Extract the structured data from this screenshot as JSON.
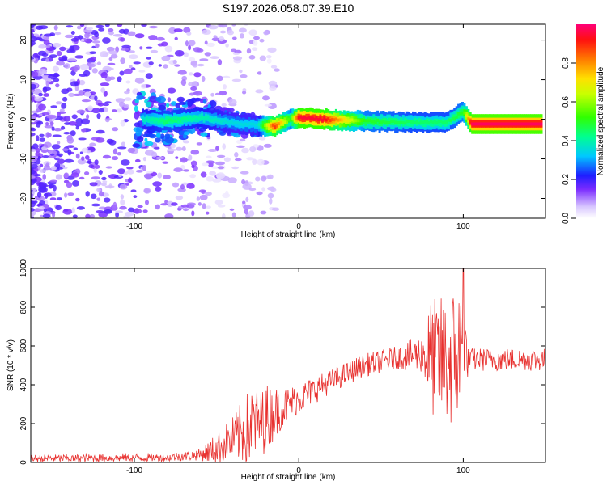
{
  "title": "S197.2026.058.07.39.E10",
  "charts": [
    {
      "type": "heatmap",
      "xlabel": "Height of straight line (km)",
      "ylabel": "Frequency (Hz)",
      "xlim": [
        -163,
        150
      ],
      "ylim": [
        -25,
        24
      ],
      "xticks": [
        -100,
        0,
        100
      ],
      "yticks": [
        -20,
        -10,
        0,
        10,
        20
      ],
      "colorbar": {
        "label": "Normalized spectral amplitude",
        "range": [
          0,
          1
        ],
        "ticks": [
          "0.0",
          "0.2",
          "0.4",
          "0.6",
          "0.8"
        ],
        "tick_values": [
          0.0,
          0.2,
          0.4,
          0.6,
          0.8
        ]
      },
      "ridge": [
        {
          "x": -100,
          "f": 0.2,
          "a": 0.35
        },
        {
          "x": -80,
          "f": -0.5,
          "a": 0.45
        },
        {
          "x": -60,
          "f": 0.5,
          "a": 0.4
        },
        {
          "x": -40,
          "f": -1.0,
          "a": 0.35
        },
        {
          "x": -25,
          "f": -1.5,
          "a": 0.35
        },
        {
          "x": -15,
          "f": -1.8,
          "a": 0.9
        },
        {
          "x": -5,
          "f": 0.0,
          "a": 0.5
        },
        {
          "x": 0,
          "f": 0.5,
          "a": 0.95
        },
        {
          "x": 15,
          "f": 0.0,
          "a": 0.95
        },
        {
          "x": 40,
          "f": -0.5,
          "a": 0.5
        },
        {
          "x": 70,
          "f": -0.8,
          "a": 0.45
        },
        {
          "x": 90,
          "f": -0.8,
          "a": 0.45
        },
        {
          "x": 100,
          "f": 2.0,
          "a": 0.5
        },
        {
          "x": 105,
          "f": -1.2,
          "a": 0.98
        },
        {
          "x": 148,
          "f": -1.2,
          "a": 0.98
        }
      ]
    },
    {
      "type": "line",
      "xlabel": "Height of straight line (km)",
      "ylabel": "SNR (10 * v/v)",
      "xlim": [
        -163,
        150
      ],
      "ylim": [
        0,
        1000
      ],
      "xticks": [
        -100,
        0,
        100
      ],
      "yticks": [
        0,
        200,
        400,
        600,
        800,
        1000
      ],
      "color": "#e8312f",
      "envelope": [
        {
          "x": -163,
          "mean": 20,
          "spread": 20
        },
        {
          "x": -80,
          "mean": 25,
          "spread": 20
        },
        {
          "x": -60,
          "mean": 40,
          "spread": 30
        },
        {
          "x": -50,
          "mean": 70,
          "spread": 80
        },
        {
          "x": -40,
          "mean": 120,
          "spread": 120
        },
        {
          "x": -30,
          "mean": 180,
          "spread": 200
        },
        {
          "x": -20,
          "mean": 230,
          "spread": 180
        },
        {
          "x": -10,
          "mean": 280,
          "spread": 100
        },
        {
          "x": 0,
          "mean": 330,
          "spread": 80
        },
        {
          "x": 20,
          "mean": 420,
          "spread": 60
        },
        {
          "x": 40,
          "mean": 500,
          "spread": 60
        },
        {
          "x": 60,
          "mean": 540,
          "spread": 60
        },
        {
          "x": 75,
          "mean": 560,
          "spread": 100
        },
        {
          "x": 80,
          "mean": 540,
          "spread": 300
        },
        {
          "x": 90,
          "mean": 520,
          "spread": 350
        },
        {
          "x": 100,
          "mean": 560,
          "spread": 400
        },
        {
          "x": 103,
          "mean": 530,
          "spread": 60
        },
        {
          "x": 150,
          "mean": 530,
          "spread": 60
        }
      ],
      "peak": {
        "x": 100,
        "y": 1000
      }
    }
  ]
}
